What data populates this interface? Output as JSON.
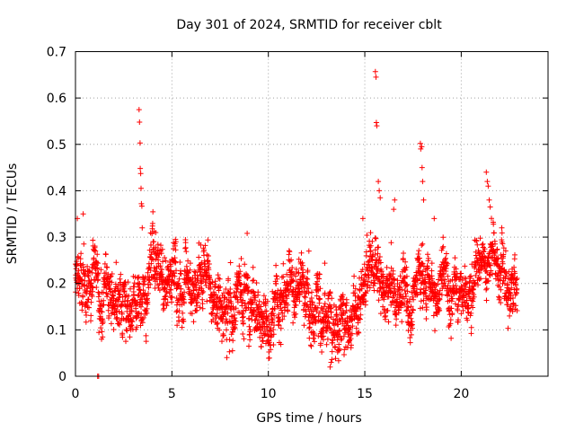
{
  "chart_data": {
    "type": "scatter",
    "title": "Day 301 of 2024, SRMTID for receiver cblt",
    "xlabel": "GPS time / hours",
    "ylabel": "SRMTID / TECUs",
    "xlim": [
      0,
      24.5
    ],
    "ylim": [
      0,
      0.7
    ],
    "xticks": [
      0,
      5,
      10,
      15,
      20
    ],
    "yticks": [
      0,
      0.1,
      0.2,
      0.3,
      0.4,
      0.5,
      0.6,
      0.7
    ],
    "xtick_labels": [
      "0",
      "5",
      "10",
      "15",
      "20"
    ],
    "ytick_labels": [
      "0",
      "0.1",
      "0.2",
      "0.3",
      "0.4",
      "0.5",
      "0.6",
      "0.7"
    ],
    "grid": true,
    "marker": "+",
    "color": "#ff0000",
    "x_extent": [
      0,
      22.9
    ],
    "samples_per_hour": 120,
    "trend": {
      "x": [
        0,
        0.5,
        1,
        1.5,
        2,
        2.5,
        3,
        3.5,
        4,
        4.5,
        5,
        5.5,
        6,
        6.5,
        7,
        7.5,
        8,
        8.5,
        9,
        9.5,
        10,
        10.5,
        11,
        11.5,
        12,
        12.5,
        13,
        13.5,
        14,
        14.5,
        15,
        15.5,
        16,
        16.5,
        17,
        17.5,
        18,
        18.5,
        19,
        19.5,
        20,
        20.5,
        21,
        21.5,
        22,
        22.5,
        22.9
      ],
      "y": [
        0.22,
        0.2,
        0.22,
        0.19,
        0.17,
        0.16,
        0.17,
        0.19,
        0.23,
        0.21,
        0.19,
        0.17,
        0.15,
        0.2,
        0.21,
        0.17,
        0.13,
        0.15,
        0.17,
        0.16,
        0.13,
        0.14,
        0.15,
        0.17,
        0.16,
        0.15,
        0.13,
        0.12,
        0.13,
        0.15,
        0.19,
        0.22,
        0.2,
        0.18,
        0.17,
        0.18,
        0.2,
        0.2,
        0.19,
        0.2,
        0.2,
        0.2,
        0.24,
        0.25,
        0.24,
        0.22,
        0.21
      ]
    },
    "spread": 0.045,
    "outliers": [
      {
        "x": 1.15,
        "y": 0.0
      },
      {
        "x": 1.2,
        "y": 0.0
      },
      {
        "x": 3.3,
        "y": 0.575
      },
      {
        "x": 3.32,
        "y": 0.548
      },
      {
        "x": 3.35,
        "y": 0.503
      },
      {
        "x": 3.36,
        "y": 0.448
      },
      {
        "x": 3.38,
        "y": 0.437
      },
      {
        "x": 3.4,
        "y": 0.405
      },
      {
        "x": 3.42,
        "y": 0.372
      },
      {
        "x": 3.44,
        "y": 0.367
      },
      {
        "x": 3.46,
        "y": 0.32
      },
      {
        "x": 8.9,
        "y": 0.308
      },
      {
        "x": 15.55,
        "y": 0.657
      },
      {
        "x": 15.58,
        "y": 0.645
      },
      {
        "x": 15.6,
        "y": 0.547
      },
      {
        "x": 15.62,
        "y": 0.54
      },
      {
        "x": 15.7,
        "y": 0.42
      },
      {
        "x": 15.75,
        "y": 0.4
      },
      {
        "x": 15.8,
        "y": 0.385
      },
      {
        "x": 17.88,
        "y": 0.502
      },
      {
        "x": 17.9,
        "y": 0.49
      },
      {
        "x": 17.95,
        "y": 0.495
      },
      {
        "x": 17.97,
        "y": 0.45
      },
      {
        "x": 18.0,
        "y": 0.42
      },
      {
        "x": 18.05,
        "y": 0.38
      },
      {
        "x": 21.3,
        "y": 0.44
      },
      {
        "x": 21.35,
        "y": 0.42
      },
      {
        "x": 21.4,
        "y": 0.41
      },
      {
        "x": 21.45,
        "y": 0.38
      },
      {
        "x": 21.5,
        "y": 0.365
      },
      {
        "x": 13.2,
        "y": 0.02
      },
      {
        "x": 13.25,
        "y": 0.03
      },
      {
        "x": 7.85,
        "y": 0.04
      },
      {
        "x": 12.1,
        "y": 0.27
      },
      {
        "x": 14.9,
        "y": 0.34
      },
      {
        "x": 16.5,
        "y": 0.36
      },
      {
        "x": 16.55,
        "y": 0.38
      },
      {
        "x": 18.6,
        "y": 0.34
      },
      {
        "x": 0.1,
        "y": 0.34
      },
      {
        "x": 0.4,
        "y": 0.35
      }
    ]
  }
}
